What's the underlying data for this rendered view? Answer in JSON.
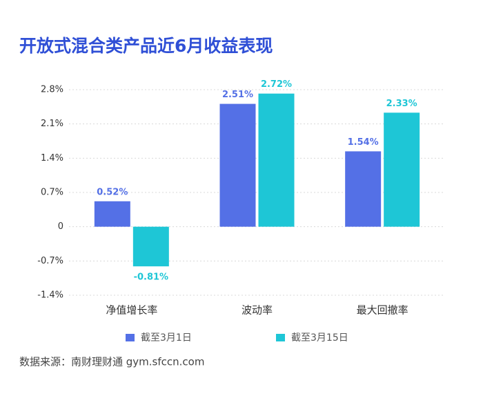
{
  "chart_data": {
    "type": "bar",
    "title": "开放式混合类产品近6月收益表现",
    "categories": [
      "净值增长率",
      "波动率",
      "最大回撤率"
    ],
    "series": [
      {
        "name": "截至3月1日",
        "color": "#5470e6",
        "values": [
          0.52,
          2.51,
          1.54
        ],
        "value_labels": [
          "0.52%",
          "2.51%",
          "1.54%"
        ]
      },
      {
        "name": "截至3月15日",
        "color": "#1ec6d6",
        "values": [
          -0.81,
          2.72,
          2.33
        ],
        "value_labels": [
          "-0.81%",
          "2.72%",
          "2.33%"
        ]
      }
    ],
    "ylim": [
      -1.4,
      2.8
    ],
    "yticks": [
      {
        "value": -1.4,
        "label": "-1.4%"
      },
      {
        "value": -0.7,
        "label": "-0.7%"
      },
      0,
      {
        "value": 0.7,
        "label": "0.7%"
      },
      {
        "value": 1.4,
        "label": "1.4%"
      },
      {
        "value": 2.1,
        "label": "2.1%"
      },
      {
        "value": 2.8,
        "label": "2.8%"
      }
    ],
    "grid": true,
    "source": "数据来源：南财理财通 gym.sfccn.com"
  }
}
